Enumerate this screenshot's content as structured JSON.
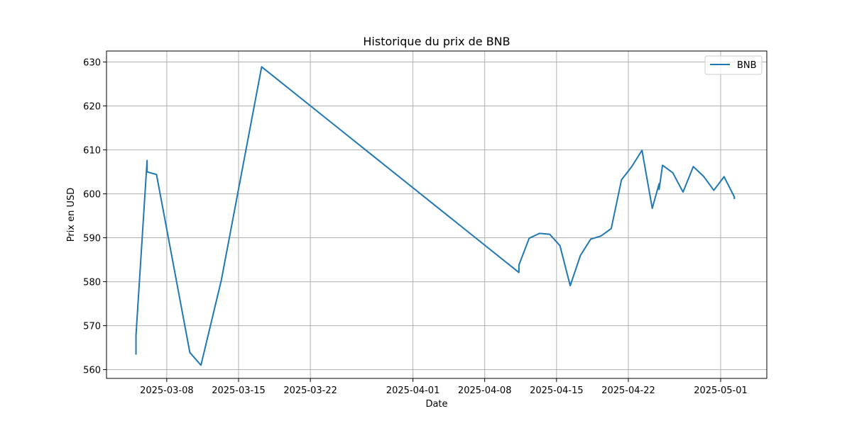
{
  "chart_data": {
    "type": "line",
    "title": "Historique du prix de BNB",
    "xlabel": "Date",
    "ylabel": "Prix en USD",
    "grid": true,
    "legend_position": "top-right",
    "x_tick_labels": [
      "2025-03-08",
      "2025-03-15",
      "2025-03-22",
      "2025-04-01",
      "2025-04-08",
      "2025-04-15",
      "2025-04-22",
      "2025-05-01"
    ],
    "y_ticks": [
      560,
      570,
      580,
      590,
      600,
      610,
      620,
      630
    ],
    "ylim": [
      558,
      632.5
    ],
    "xlim": [
      "2025-03-02 03:00",
      "2025-05-05 12:00"
    ],
    "series": [
      {
        "name": "BNB",
        "color": "#1f77b4",
        "points": [
          [
            "2025-03-05 00:00",
            563.4
          ],
          [
            "2025-03-05 00:00",
            567.8
          ],
          [
            "2025-03-06 02:00",
            607.6
          ],
          [
            "2025-03-06 02:00",
            605.0
          ],
          [
            "2025-03-07 00:00",
            604.4
          ],
          [
            "2025-03-10 06:00",
            563.9
          ],
          [
            "2025-03-11 08:00",
            561.0
          ],
          [
            "2025-03-13 08:00",
            580.5
          ],
          [
            "2025-03-17 06:00",
            628.9
          ],
          [
            "2025-04-11 08:00",
            582.1
          ],
          [
            "2025-04-11 08:00",
            583.8
          ],
          [
            "2025-04-12 08:00",
            589.9
          ],
          [
            "2025-04-13 08:00",
            591.0
          ],
          [
            "2025-04-14 08:00",
            590.8
          ],
          [
            "2025-04-15 08:00",
            588.2
          ],
          [
            "2025-04-16 08:00",
            579.1
          ],
          [
            "2025-04-17 08:00",
            586.0
          ],
          [
            "2025-04-18 08:00",
            589.7
          ],
          [
            "2025-04-19 08:00",
            590.4
          ],
          [
            "2025-04-20 08:00",
            592.1
          ],
          [
            "2025-04-21 08:00",
            603.2
          ],
          [
            "2025-04-22 08:00",
            606.2
          ],
          [
            "2025-04-23 08:00",
            609.9
          ],
          [
            "2025-04-24 08:00",
            596.7
          ],
          [
            "2025-04-25 00:00",
            602.3
          ],
          [
            "2025-04-25 00:00",
            601.0
          ],
          [
            "2025-04-25 08:00",
            606.5
          ],
          [
            "2025-04-26 08:00",
            604.8
          ],
          [
            "2025-04-27 08:00",
            600.4
          ],
          [
            "2025-04-28 08:00",
            606.2
          ],
          [
            "2025-04-29 08:00",
            604.0
          ],
          [
            "2025-04-30 08:00",
            600.8
          ],
          [
            "2025-05-01 08:00",
            603.9
          ],
          [
            "2025-05-02 08:00",
            599.3
          ],
          [
            "2025-05-02 08:00",
            598.8
          ]
        ]
      }
    ]
  }
}
